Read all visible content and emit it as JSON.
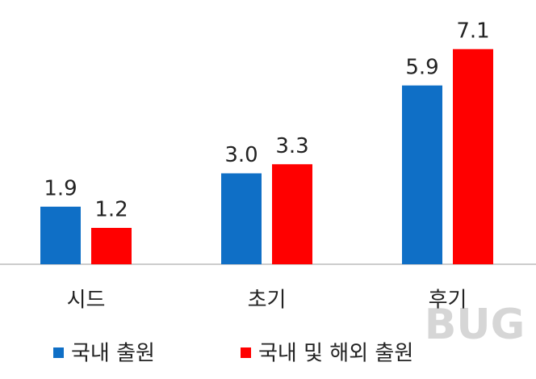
{
  "chart_data": {
    "type": "bar",
    "categories": [
      "시드",
      "초기",
      "후기"
    ],
    "series": [
      {
        "name": "국내 출원",
        "color": "#0f6fc6",
        "values": [
          1.9,
          3.0,
          5.9
        ],
        "value_labels": [
          "1.9",
          "3.0",
          "5.9"
        ]
      },
      {
        "name": "국내 및 해외 출원",
        "color": "#ff0000",
        "values": [
          1.2,
          3.3,
          7.1
        ],
        "value_labels": [
          "1.2",
          "3.3",
          "7.1"
        ]
      }
    ],
    "legend": "bottom"
  },
  "watermark": "BUG"
}
